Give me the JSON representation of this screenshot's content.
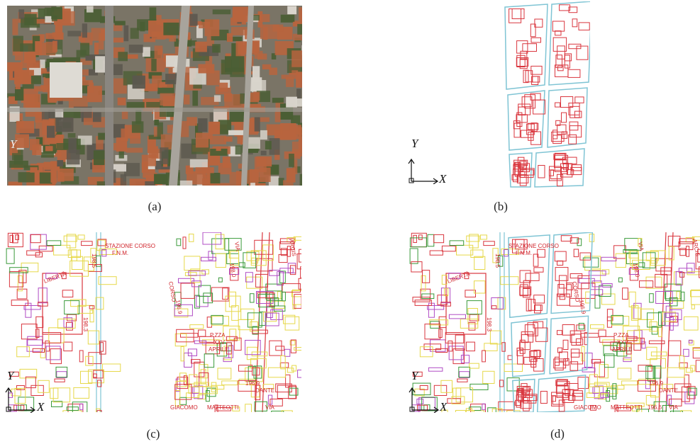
{
  "captions": {
    "a": "(a)",
    "b": "(b)",
    "c": "(c)",
    "d": "(d)"
  },
  "axes": {
    "x": "X",
    "y": "Y"
  },
  "map_labels": {
    "stazione": "STAZIONE CORSO",
    "fnm": "F.N.M.",
    "liberta": "LIBERTÀ",
    "corso": "CORSO",
    "piazza_line1": "P.ZZA",
    "piazza_line2": "XXV",
    "piazza_line3": "APRILE",
    "via": "VIA",
    "dante": "DANTE",
    "giacomo": "GIACOMO",
    "matteotti": "MATTEOTTI",
    "via2": "VIA",
    "arcis": "ARCIS",
    "elev_1": "198.5",
    "elev_2": "198.3",
    "elev_3": "196.9",
    "elev_4": "196.9",
    "elev_5": "198.0",
    "elev_6": "196.6"
  },
  "colors": {
    "roof": "#b8643e",
    "tree": "#4a5e34",
    "street": "#8a8680",
    "building_outline": "#d9363e",
    "block_outline": "#7fc4d4",
    "ctr_yellow": "#e6d84a",
    "ctr_magenta": "#b04cc4",
    "ctr_green": "#3a9a3a"
  }
}
